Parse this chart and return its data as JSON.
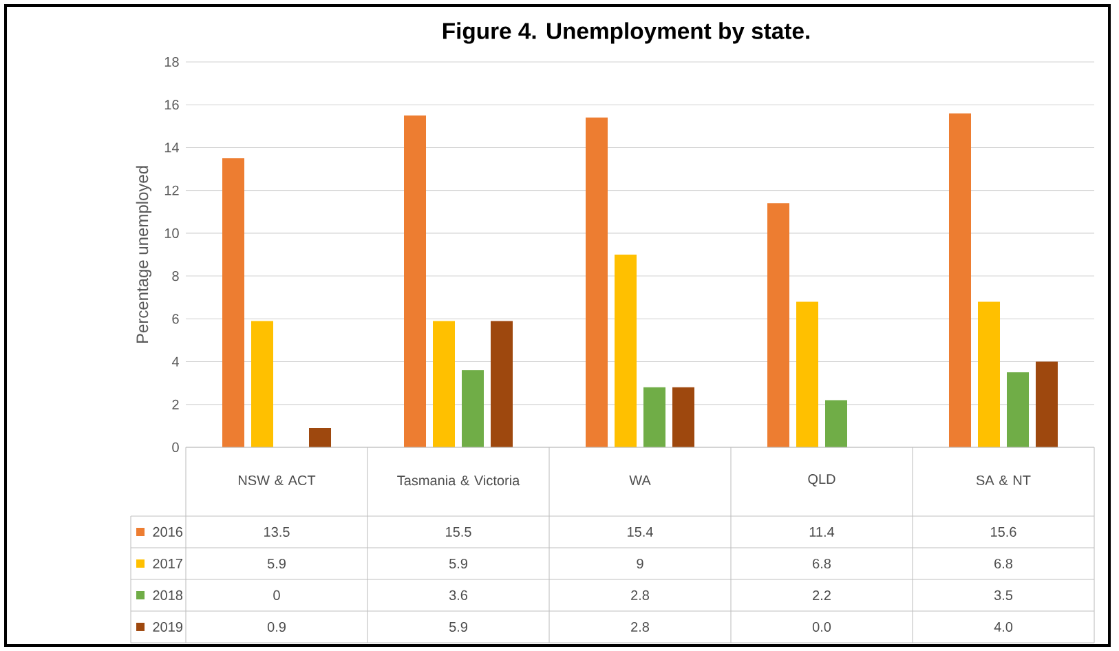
{
  "chart_data": {
    "type": "bar",
    "title": "Figure 4. Unemployment by state.",
    "ylabel": "Percentage unemployed",
    "categories": [
      "NSW & ACT",
      "Tasmania & Victoria",
      "WA",
      "QLD",
      "SA & NT"
    ],
    "series": [
      {
        "name": "2016",
        "color": "#ed7d31",
        "values": [
          13.5,
          15.5,
          15.4,
          11.4,
          15.6
        ],
        "value_labels": [
          "13.5",
          "15.5",
          "15.4",
          "11.4",
          "15.6"
        ]
      },
      {
        "name": "2017",
        "color": "#ffc000",
        "values": [
          5.9,
          5.9,
          9,
          6.8,
          6.8
        ],
        "value_labels": [
          "5.9",
          "5.9",
          "9",
          "6.8",
          "6.8"
        ]
      },
      {
        "name": "2018",
        "color": "#70ad47",
        "values": [
          0,
          3.6,
          2.8,
          2.2,
          3.5
        ],
        "value_labels": [
          "0",
          "3.6",
          "2.8",
          "2.2",
          "3.5"
        ]
      },
      {
        "name": "2019",
        "color": "#9e480e",
        "values": [
          0.9,
          5.9,
          2.8,
          0.0,
          4.0
        ],
        "value_labels": [
          "0.9",
          "5.9",
          "2.8",
          "0.0",
          "4.0"
        ]
      }
    ],
    "ylim": [
      0,
      18
    ],
    "yticks": [
      0,
      2,
      4,
      6,
      8,
      10,
      12,
      14,
      16,
      18
    ],
    "grid": "y",
    "legend": "left"
  }
}
